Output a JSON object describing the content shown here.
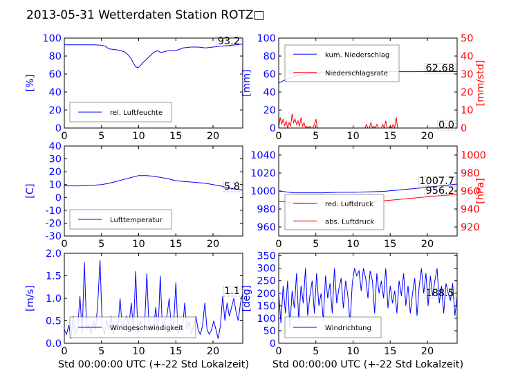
{
  "title": "2013-05-31 Wetterdaten Station ROTZ□",
  "colors": {
    "left": "#0000ff",
    "right": "#ff0000",
    "axes": "#000000"
  },
  "chart_data": [
    {
      "type": "line",
      "xlim": [
        0,
        24
      ],
      "xticks": [
        0,
        5,
        10,
        15,
        20
      ],
      "ylabel": "[%]",
      "ylim": [
        0,
        100
      ],
      "yticks": [
        0,
        20,
        40,
        60,
        80,
        100
      ],
      "legend_position": "lower-left",
      "series": [
        {
          "name": "rel. Luftfeuchte",
          "axis": "left",
          "color": "#0000ff",
          "x": [
            0,
            1,
            2,
            3,
            4,
            5,
            5.5,
            6,
            7,
            8,
            8.5,
            9,
            9.3,
            9.6,
            9.9,
            10.2,
            10.5,
            11,
            11.5,
            12,
            12.5,
            13,
            14,
            15,
            16,
            17,
            18,
            19,
            20,
            21,
            22,
            23,
            24
          ],
          "y": [
            92.5,
            92.5,
            92.5,
            92.5,
            92.5,
            92,
            91,
            88,
            87,
            85,
            82,
            77,
            72,
            68,
            67,
            69,
            72,
            76,
            80,
            84,
            86,
            84,
            86,
            86,
            89,
            90,
            90,
            89,
            90,
            91,
            91.5,
            92.5,
            93.2
          ]
        }
      ],
      "annotations": [
        "93.2"
      ]
    },
    {
      "type": "line",
      "xlim": [
        0,
        24
      ],
      "xticks": [
        0,
        5,
        10,
        15,
        20
      ],
      "ylabel": "[mm]",
      "ylim": [
        0,
        100
      ],
      "yticks": [
        0,
        20,
        40,
        60,
        80,
        100
      ],
      "ylabel_right": "[mm/std]",
      "ylim_right": [
        0,
        50
      ],
      "yticks_right": [
        0,
        10,
        20,
        30,
        40,
        50
      ],
      "legend_position": "upper-left",
      "series": [
        {
          "name": "kum. Niederschlag",
          "axis": "left",
          "color": "#0000ff",
          "x": [
            0,
            0.5,
            1,
            2,
            3,
            4,
            5,
            6,
            8,
            10,
            12,
            14,
            16,
            18,
            20,
            22,
            24
          ],
          "y": [
            50,
            52,
            54,
            57,
            59,
            60.5,
            61,
            61.5,
            62,
            62.2,
            62.4,
            62.5,
            62.6,
            62.6,
            62.68,
            62.68,
            62.68
          ]
        },
        {
          "name": "Niederschlagsrate",
          "axis": "right",
          "color": "#ff0000",
          "x": [
            0,
            0.2,
            0.4,
            0.6,
            0.8,
            1.0,
            1.2,
            1.4,
            1.6,
            1.8,
            2.0,
            2.2,
            2.4,
            2.6,
            2.8,
            3.0,
            3.2,
            3.4,
            3.6,
            3.8,
            4.0,
            4.2,
            4.4,
            4.6,
            4.8,
            5.0,
            5.2,
            5.4,
            5.6,
            6,
            7,
            8,
            9,
            10,
            11,
            11.6,
            11.8,
            12,
            12.2,
            12.4,
            12.6,
            12.8,
            13,
            13.2,
            13.4,
            13.6,
            13.8,
            14,
            14.2,
            14.4,
            14.6,
            14.8,
            15,
            15.2,
            15.4,
            15.6,
            15.8,
            16,
            17,
            18,
            19,
            20,
            21,
            22,
            23,
            24
          ],
          "y": [
            0,
            6,
            2,
            5,
            1,
            4,
            0,
            3,
            1,
            8,
            3,
            5,
            2,
            4,
            1,
            6,
            1,
            3,
            0,
            1,
            0,
            1,
            0,
            0,
            2,
            5,
            0,
            0,
            0,
            0,
            0,
            0,
            0,
            0,
            0,
            0,
            2,
            0,
            0,
            3,
            0,
            1,
            0,
            2,
            0,
            0,
            0,
            2,
            0,
            4,
            0,
            0,
            1,
            0,
            2,
            0,
            6,
            0,
            0,
            0,
            0,
            0,
            0,
            0,
            0,
            0
          ]
        }
      ],
      "annotations": [
        "62.68",
        "0.0"
      ]
    },
    {
      "type": "line",
      "xlim": [
        0,
        24
      ],
      "xticks": [
        0,
        5,
        10,
        15,
        20
      ],
      "ylabel": "[C]",
      "ylim": [
        -30,
        40
      ],
      "yticks": [
        -30,
        -20,
        -10,
        0,
        10,
        20,
        30,
        40
      ],
      "legend_position": "lower-left",
      "series": [
        {
          "name": "Lufttemperatur",
          "axis": "left",
          "color": "#0000ff",
          "x": [
            0,
            1,
            2,
            3,
            4,
            5,
            6,
            7,
            8,
            9,
            10,
            11,
            12,
            13,
            14,
            15,
            16,
            17,
            18,
            19,
            20,
            21,
            22,
            23,
            24
          ],
          "y": [
            9,
            9,
            9,
            9.2,
            9.5,
            10,
            11,
            12.5,
            14,
            15.5,
            17,
            17,
            16.5,
            15.5,
            14.5,
            13,
            12.5,
            12,
            11.5,
            11,
            10,
            9,
            7.5,
            6.5,
            5.8
          ]
        }
      ],
      "annotations": [
        "5.8"
      ]
    },
    {
      "type": "line",
      "xlim": [
        0,
        24
      ],
      "xticks": [
        0,
        5,
        10,
        15,
        20
      ],
      "ylabel": "",
      "ylim": [
        950,
        1050
      ],
      "yticks": [
        960,
        980,
        1000,
        1020,
        1040
      ],
      "ylabel_right": "[hPa]",
      "ylim_right": [
        910,
        1010
      ],
      "yticks_right": [
        920,
        940,
        960,
        980,
        1000
      ],
      "legend_position": "lower-left",
      "series": [
        {
          "name": "red. Luftdruck",
          "axis": "left",
          "color": "#0000ff",
          "x": [
            0,
            2,
            4,
            6,
            8,
            10,
            12,
            14,
            16,
            18,
            20,
            22,
            24
          ],
          "y": [
            1000,
            998,
            998,
            998,
            998.5,
            998.5,
            999,
            999.5,
            1001,
            1002.5,
            1004,
            1006,
            1007.7
          ]
        },
        {
          "name": "abs. Luftdruck",
          "axis": "right",
          "color": "#ff0000",
          "x": [
            0,
            2,
            4,
            6,
            8,
            10,
            12,
            14,
            16,
            18,
            20,
            22,
            24
          ],
          "y": [
            948.5,
            947,
            946.5,
            946.5,
            946.5,
            946.5,
            947.5,
            949,
            950.5,
            952,
            953.5,
            955,
            956.2
          ]
        }
      ],
      "annotations": [
        "1007.7",
        "956.2"
      ]
    },
    {
      "type": "line",
      "xlim": [
        0,
        24
      ],
      "xticks": [
        0,
        5,
        10,
        15,
        20
      ],
      "xlabel": "Std 00:00:00 UTC (+-22 Std Lokalzeit)",
      "ylabel": "[m/s]",
      "ylim": [
        0,
        2.0
      ],
      "yticks": [
        0.0,
        0.5,
        1.0,
        1.5,
        2.0
      ],
      "yticklabels": [
        "0.0",
        "0.5",
        "1.0",
        "1.5",
        "2.0"
      ],
      "legend_position": "lower-center",
      "series": [
        {
          "name": "Windgeschwindigkeit",
          "axis": "left",
          "color": "#0000ff",
          "x": [
            0,
            0.3,
            0.6,
            0.9,
            1.2,
            1.5,
            1.8,
            2.1,
            2.4,
            2.7,
            3.0,
            3.3,
            3.6,
            3.9,
            4.2,
            4.5,
            4.8,
            5.1,
            5.4,
            5.7,
            6.0,
            6.3,
            6.6,
            6.9,
            7.2,
            7.5,
            7.8,
            8.1,
            8.4,
            8.7,
            9.0,
            9.3,
            9.6,
            9.9,
            10.2,
            10.5,
            10.8,
            11.1,
            11.4,
            11.7,
            12.0,
            12.3,
            12.6,
            12.9,
            13.2,
            13.5,
            13.8,
            14.1,
            14.4,
            14.7,
            15.0,
            15.3,
            15.6,
            15.9,
            16.2,
            16.5,
            16.8,
            17.1,
            17.4,
            17.7,
            18.0,
            18.3,
            18.6,
            18.9,
            19.2,
            19.5,
            19.8,
            20.1,
            20.4,
            20.7,
            21.0,
            21.3,
            21.6,
            21.9,
            22.2,
            22.5,
            22.8,
            23.1,
            23.4,
            23.7,
            24
          ],
          "y": [
            0.3,
            0.2,
            0.4,
            0.1,
            0.6,
            0.2,
            0.3,
            1.05,
            0.2,
            1.8,
            0.3,
            0.4,
            0.2,
            0.5,
            0.3,
            0.9,
            1.85,
            0.4,
            0.2,
            0.5,
            0.3,
            0.6,
            0.2,
            0.4,
            0.3,
            1.0,
            0.3,
            0.5,
            0.6,
            0.4,
            0.9,
            0.3,
            1.6,
            0.2,
            0.5,
            0.3,
            0.4,
            1.55,
            0.3,
            0.4,
            0.3,
            0.8,
            0.2,
            1.5,
            0.3,
            0.5,
            0.6,
            1.0,
            0.3,
            0.4,
            1.35,
            0.2,
            0.4,
            0.3,
            0.9,
            0.3,
            0.5,
            0.2,
            0.4,
            0.6,
            0.3,
            0.2,
            0.4,
            0.9,
            0.3,
            0.2,
            0.3,
            0.5,
            0.3,
            0.1,
            0.4,
            1.05,
            0.5,
            0.9,
            0.6,
            0.8,
            1.0,
            0.7,
            0.5,
            0.9,
            1.1
          ]
        }
      ],
      "annotations": [
        "1.1"
      ]
    },
    {
      "type": "line",
      "xlim": [
        0,
        24
      ],
      "xticks": [
        0,
        5,
        10,
        15,
        20
      ],
      "xlabel": "Std 00:00:00 UTC (+-22 Std Lokalzeit)",
      "ylabel": "[deg]",
      "ylim": [
        0,
        360
      ],
      "yticks": [
        0,
        50,
        100,
        150,
        200,
        250,
        300,
        350
      ],
      "legend_position": "lower-left",
      "series": [
        {
          "name": "Windrichtung",
          "axis": "left",
          "color": "#0000ff",
          "x": [
            0,
            0.3,
            0.6,
            0.9,
            1.2,
            1.5,
            1.8,
            2.1,
            2.4,
            2.7,
            3.0,
            3.3,
            3.6,
            3.9,
            4.2,
            4.5,
            4.8,
            5.1,
            5.4,
            5.7,
            6.0,
            6.3,
            6.6,
            6.9,
            7.2,
            7.5,
            7.8,
            8.1,
            8.4,
            8.7,
            9.0,
            9.3,
            9.6,
            9.9,
            10.2,
            10.5,
            10.8,
            11.1,
            11.4,
            11.7,
            12.0,
            12.3,
            12.6,
            12.9,
            13.2,
            13.5,
            13.8,
            14.1,
            14.4,
            14.7,
            15.0,
            15.3,
            15.6,
            15.9,
            16.2,
            16.5,
            16.8,
            17.1,
            17.4,
            17.7,
            18.0,
            18.3,
            18.6,
            18.9,
            19.2,
            19.5,
            19.8,
            20.1,
            20.4,
            20.7,
            21.0,
            21.3,
            21.6,
            21.9,
            22.2,
            22.5,
            22.8,
            23.1,
            23.4,
            23.7,
            24
          ],
          "y": [
            200,
            80,
            230,
            120,
            250,
            60,
            210,
            140,
            280,
            90,
            230,
            160,
            300,
            110,
            190,
            250,
            120,
            280,
            150,
            200,
            90,
            270,
            180,
            240,
            120,
            300,
            160,
            220,
            260,
            140,
            250,
            190,
            80,
            240,
            300,
            270,
            290,
            210,
            300,
            260,
            180,
            290,
            250,
            120,
            280,
            200,
            250,
            180,
            300,
            140,
            230,
            160,
            210,
            120,
            250,
            190,
            280,
            150,
            230,
            120,
            200,
            260,
            110,
            230,
            300,
            200,
            280,
            150,
            270,
            190,
            250,
            300,
            160,
            230,
            120,
            240,
            200,
            170,
            240,
            110,
            188.5
          ]
        }
      ],
      "annotations": [
        "188.5"
      ]
    }
  ]
}
